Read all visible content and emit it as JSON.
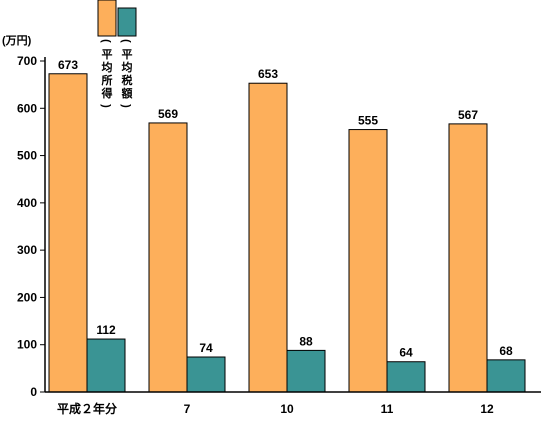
{
  "chart_data": {
    "type": "bar",
    "unit_label": "(万円)",
    "categories": [
      "平成２年分",
      "7",
      "10",
      "11",
      "12"
    ],
    "series": [
      {
        "name": "(平均所得)",
        "values": [
          673,
          569,
          653,
          555,
          567
        ],
        "color": "#FDAF5B"
      },
      {
        "name": "(平均税額)",
        "values": [
          112,
          74,
          88,
          64,
          68
        ],
        "color": "#3A9494"
      }
    ],
    "yticks": [
      0,
      100,
      200,
      300,
      400,
      500,
      600,
      700
    ],
    "ylim": [
      0,
      700
    ],
    "grid": false,
    "legend_position": "top"
  }
}
